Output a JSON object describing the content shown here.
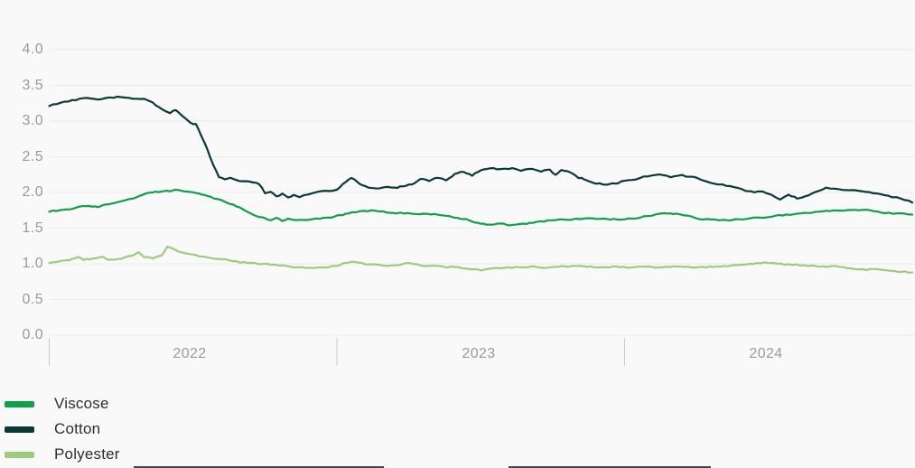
{
  "page": {
    "background": "#f9f9f9"
  },
  "colors": {
    "grid": "#ececec",
    "tick": "#c9c9c9",
    "axis_text": "#9a9a9a",
    "legend_text": "#2e2e2e"
  },
  "chart_data": {
    "type": "line",
    "title": "",
    "xlabel": "",
    "ylabel": "",
    "grid": true,
    "y_axis": {
      "ticks": [
        0.0,
        0.5,
        1.0,
        1.5,
        2.0,
        2.5,
        3.0,
        3.5,
        4.0
      ],
      "range": [
        0,
        4
      ]
    },
    "x_axis": {
      "tick_labels": [
        "2022",
        "2023",
        "2024"
      ],
      "span_years": 3
    },
    "legend": {
      "position": "bottom-left",
      "items": [
        "Viscose",
        "Cotton",
        "Polyester"
      ]
    },
    "series": [
      {
        "name": "Viscose",
        "color": "#0ca24a",
        "points": [
          [
            0.0,
            1.73
          ],
          [
            0.04,
            1.75
          ],
          [
            0.07,
            1.76
          ],
          [
            0.1,
            1.8
          ],
          [
            0.14,
            1.81
          ],
          [
            0.17,
            1.8
          ],
          [
            0.2,
            1.83
          ],
          [
            0.23,
            1.86
          ],
          [
            0.26,
            1.88
          ],
          [
            0.29,
            1.92
          ],
          [
            0.32,
            1.96
          ],
          [
            0.35,
            1.99
          ],
          [
            0.38,
            2.01
          ],
          [
            0.41,
            2.02
          ],
          [
            0.44,
            2.03
          ],
          [
            0.47,
            2.02
          ],
          [
            0.5,
            2.0
          ],
          [
            0.53,
            1.97
          ],
          [
            0.56,
            1.94
          ],
          [
            0.6,
            1.89
          ],
          [
            0.63,
            1.84
          ],
          [
            0.66,
            1.79
          ],
          [
            0.69,
            1.73
          ],
          [
            0.71,
            1.69
          ],
          [
            0.73,
            1.66
          ],
          [
            0.75,
            1.64
          ],
          [
            0.77,
            1.61
          ],
          [
            0.79,
            1.64
          ],
          [
            0.81,
            1.6
          ],
          [
            0.83,
            1.63
          ],
          [
            0.86,
            1.62
          ],
          [
            0.9,
            1.62
          ],
          [
            0.94,
            1.63
          ],
          [
            0.98,
            1.65
          ],
          [
            1.01,
            1.68
          ],
          [
            1.04,
            1.71
          ],
          [
            1.08,
            1.73
          ],
          [
            1.12,
            1.75
          ],
          [
            1.15,
            1.74
          ],
          [
            1.18,
            1.72
          ],
          [
            1.22,
            1.71
          ],
          [
            1.26,
            1.7
          ],
          [
            1.3,
            1.7
          ],
          [
            1.34,
            1.69
          ],
          [
            1.38,
            1.68
          ],
          [
            1.42,
            1.64
          ],
          [
            1.45,
            1.62
          ],
          [
            1.48,
            1.58
          ],
          [
            1.51,
            1.56
          ],
          [
            1.54,
            1.55
          ],
          [
            1.57,
            1.57
          ],
          [
            1.59,
            1.54
          ],
          [
            1.62,
            1.55
          ],
          [
            1.65,
            1.56
          ],
          [
            1.68,
            1.58
          ],
          [
            1.72,
            1.6
          ],
          [
            1.76,
            1.61
          ],
          [
            1.8,
            1.62
          ],
          [
            1.85,
            1.63
          ],
          [
            1.9,
            1.63
          ],
          [
            1.95,
            1.62
          ],
          [
            2.0,
            1.63
          ],
          [
            2.04,
            1.64
          ],
          [
            2.08,
            1.67
          ],
          [
            2.12,
            1.7
          ],
          [
            2.15,
            1.71
          ],
          [
            2.18,
            1.7
          ],
          [
            2.22,
            1.67
          ],
          [
            2.26,
            1.63
          ],
          [
            2.3,
            1.62
          ],
          [
            2.35,
            1.61
          ],
          [
            2.4,
            1.62
          ],
          [
            2.45,
            1.64
          ],
          [
            2.5,
            1.66
          ],
          [
            2.55,
            1.68
          ],
          [
            2.6,
            1.7
          ],
          [
            2.65,
            1.72
          ],
          [
            2.7,
            1.74
          ],
          [
            2.75,
            1.75
          ],
          [
            2.8,
            1.76
          ],
          [
            2.84,
            1.75
          ],
          [
            2.88,
            1.73
          ],
          [
            2.92,
            1.71
          ],
          [
            2.96,
            1.7
          ],
          [
            3.0,
            1.69
          ]
        ]
      },
      {
        "name": "Cotton",
        "color": "#0a3a35",
        "points": [
          [
            0.0,
            3.21
          ],
          [
            0.04,
            3.26
          ],
          [
            0.08,
            3.29
          ],
          [
            0.13,
            3.32
          ],
          [
            0.17,
            3.31
          ],
          [
            0.21,
            3.33
          ],
          [
            0.25,
            3.34
          ],
          [
            0.29,
            3.32
          ],
          [
            0.33,
            3.31
          ],
          [
            0.36,
            3.26
          ],
          [
            0.39,
            3.17
          ],
          [
            0.42,
            3.12
          ],
          [
            0.44,
            3.15
          ],
          [
            0.46,
            3.08
          ],
          [
            0.49,
            2.97
          ],
          [
            0.51,
            2.96
          ],
          [
            0.53,
            2.78
          ],
          [
            0.55,
            2.6
          ],
          [
            0.57,
            2.38
          ],
          [
            0.59,
            2.22
          ],
          [
            0.61,
            2.19
          ],
          [
            0.63,
            2.21
          ],
          [
            0.65,
            2.17
          ],
          [
            0.68,
            2.16
          ],
          [
            0.71,
            2.14
          ],
          [
            0.73,
            2.12
          ],
          [
            0.75,
            1.99
          ],
          [
            0.77,
            2.01
          ],
          [
            0.79,
            1.94
          ],
          [
            0.81,
            1.98
          ],
          [
            0.83,
            1.93
          ],
          [
            0.85,
            1.96
          ],
          [
            0.87,
            1.94
          ],
          [
            0.9,
            1.97
          ],
          [
            0.93,
            2.0
          ],
          [
            0.96,
            2.02
          ],
          [
            1.0,
            2.04
          ],
          [
            1.03,
            2.15
          ],
          [
            1.05,
            2.21
          ],
          [
            1.08,
            2.12
          ],
          [
            1.11,
            2.07
          ],
          [
            1.14,
            2.06
          ],
          [
            1.17,
            2.08
          ],
          [
            1.2,
            2.06
          ],
          [
            1.23,
            2.09
          ],
          [
            1.26,
            2.11
          ],
          [
            1.29,
            2.19
          ],
          [
            1.32,
            2.16
          ],
          [
            1.35,
            2.21
          ],
          [
            1.38,
            2.17
          ],
          [
            1.41,
            2.26
          ],
          [
            1.44,
            2.29
          ],
          [
            1.47,
            2.24
          ],
          [
            1.5,
            2.31
          ],
          [
            1.53,
            2.34
          ],
          [
            1.57,
            2.32
          ],
          [
            1.61,
            2.34
          ],
          [
            1.64,
            2.31
          ],
          [
            1.68,
            2.33
          ],
          [
            1.71,
            2.3
          ],
          [
            1.74,
            2.32
          ],
          [
            1.76,
            2.24
          ],
          [
            1.78,
            2.32
          ],
          [
            1.81,
            2.28
          ],
          [
            1.84,
            2.21
          ],
          [
            1.87,
            2.17
          ],
          [
            1.9,
            2.13
          ],
          [
            1.94,
            2.11
          ],
          [
            1.97,
            2.13
          ],
          [
            2.0,
            2.16
          ],
          [
            2.04,
            2.19
          ],
          [
            2.08,
            2.23
          ],
          [
            2.12,
            2.25
          ],
          [
            2.16,
            2.22
          ],
          [
            2.2,
            2.24
          ],
          [
            2.24,
            2.21
          ],
          [
            2.28,
            2.16
          ],
          [
            2.31,
            2.13
          ],
          [
            2.34,
            2.11
          ],
          [
            2.38,
            2.07
          ],
          [
            2.42,
            2.03
          ],
          [
            2.45,
            2.0
          ],
          [
            2.48,
            2.02
          ],
          [
            2.51,
            1.97
          ],
          [
            2.54,
            1.9
          ],
          [
            2.57,
            1.96
          ],
          [
            2.6,
            1.92
          ],
          [
            2.63,
            1.95
          ],
          [
            2.66,
            2.0
          ],
          [
            2.7,
            2.07
          ],
          [
            2.73,
            2.05
          ],
          [
            2.77,
            2.04
          ],
          [
            2.81,
            2.02
          ],
          [
            2.85,
            2.0
          ],
          [
            2.89,
            1.97
          ],
          [
            2.93,
            1.94
          ],
          [
            2.96,
            1.92
          ],
          [
            3.0,
            1.86
          ]
        ]
      },
      {
        "name": "Polyester",
        "color": "#9dcc7b",
        "points": [
          [
            0.0,
            1.01
          ],
          [
            0.04,
            1.04
          ],
          [
            0.07,
            1.05
          ],
          [
            0.1,
            1.09
          ],
          [
            0.12,
            1.06
          ],
          [
            0.15,
            1.07
          ],
          [
            0.18,
            1.1
          ],
          [
            0.2,
            1.07
          ],
          [
            0.23,
            1.05
          ],
          [
            0.26,
            1.08
          ],
          [
            0.29,
            1.12
          ],
          [
            0.31,
            1.16
          ],
          [
            0.33,
            1.1
          ],
          [
            0.36,
            1.08
          ],
          [
            0.39,
            1.11
          ],
          [
            0.41,
            1.24
          ],
          [
            0.43,
            1.21
          ],
          [
            0.46,
            1.16
          ],
          [
            0.49,
            1.13
          ],
          [
            0.52,
            1.11
          ],
          [
            0.55,
            1.09
          ],
          [
            0.58,
            1.07
          ],
          [
            0.61,
            1.06
          ],
          [
            0.65,
            1.03
          ],
          [
            0.69,
            1.01
          ],
          [
            0.73,
            1.0
          ],
          [
            0.77,
            0.99
          ],
          [
            0.81,
            0.97
          ],
          [
            0.85,
            0.95
          ],
          [
            0.89,
            0.95
          ],
          [
            0.93,
            0.94
          ],
          [
            0.97,
            0.95
          ],
          [
            1.0,
            0.97
          ],
          [
            1.03,
            1.01
          ],
          [
            1.06,
            1.03
          ],
          [
            1.1,
            1.0
          ],
          [
            1.14,
            0.98
          ],
          [
            1.18,
            0.97
          ],
          [
            1.22,
            0.99
          ],
          [
            1.25,
            1.01
          ],
          [
            1.29,
            0.98
          ],
          [
            1.33,
            0.97
          ],
          [
            1.37,
            0.96
          ],
          [
            1.41,
            0.95
          ],
          [
            1.45,
            0.93
          ],
          [
            1.49,
            0.91
          ],
          [
            1.53,
            0.93
          ],
          [
            1.57,
            0.94
          ],
          [
            1.62,
            0.95
          ],
          [
            1.67,
            0.96
          ],
          [
            1.72,
            0.95
          ],
          [
            1.77,
            0.96
          ],
          [
            1.82,
            0.97
          ],
          [
            1.87,
            0.96
          ],
          [
            1.92,
            0.95
          ],
          [
            1.97,
            0.96
          ],
          [
            2.02,
            0.95
          ],
          [
            2.07,
            0.96
          ],
          [
            2.12,
            0.95
          ],
          [
            2.17,
            0.96
          ],
          [
            2.22,
            0.96
          ],
          [
            2.27,
            0.95
          ],
          [
            2.32,
            0.96
          ],
          [
            2.37,
            0.97
          ],
          [
            2.42,
            0.99
          ],
          [
            2.46,
            1.01
          ],
          [
            2.49,
            1.02
          ],
          [
            2.53,
            1.0
          ],
          [
            2.57,
            0.99
          ],
          [
            2.61,
            0.98
          ],
          [
            2.65,
            0.97
          ],
          [
            2.69,
            0.96
          ],
          [
            2.72,
            0.97
          ],
          [
            2.76,
            0.95
          ],
          [
            2.8,
            0.93
          ],
          [
            2.84,
            0.92
          ],
          [
            2.88,
            0.93
          ],
          [
            2.92,
            0.91
          ],
          [
            2.96,
            0.89
          ],
          [
            3.0,
            0.88
          ]
        ]
      }
    ]
  }
}
